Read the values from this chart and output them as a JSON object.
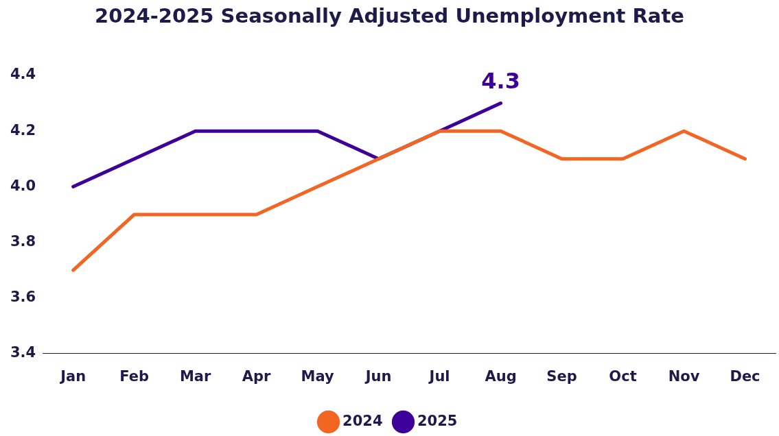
{
  "chart_data": {
    "type": "line",
    "title": "2024-2025 Seasonally Adjusted Unemployment Rate",
    "categories": [
      "Jan",
      "Feb",
      "Mar",
      "Apr",
      "May",
      "Jun",
      "Jul",
      "Aug",
      "Sep",
      "Oct",
      "Nov",
      "Dec"
    ],
    "series": [
      {
        "name": "2024",
        "color": "#f26522",
        "values": [
          3.7,
          3.9,
          3.9,
          3.9,
          4.0,
          4.1,
          4.2,
          4.2,
          4.1,
          4.1,
          4.2,
          4.1
        ]
      },
      {
        "name": "2025",
        "color": "#3d0099",
        "values": [
          4.0,
          4.1,
          4.2,
          4.2,
          4.2,
          4.1,
          4.2,
          4.3,
          null,
          null,
          null,
          null
        ]
      }
    ],
    "ylim": [
      3.4,
      4.4
    ],
    "yticks": [
      3.4,
      3.6,
      3.8,
      {
        "value": 4.0,
        "label": "4.0"
      },
      4.2,
      4.4
    ],
    "annotations": [
      {
        "text": "4.3",
        "x": "Aug",
        "y": 4.3
      }
    ],
    "grid": false,
    "legend": "bottom",
    "marker": "none",
    "line_style": "solid"
  }
}
